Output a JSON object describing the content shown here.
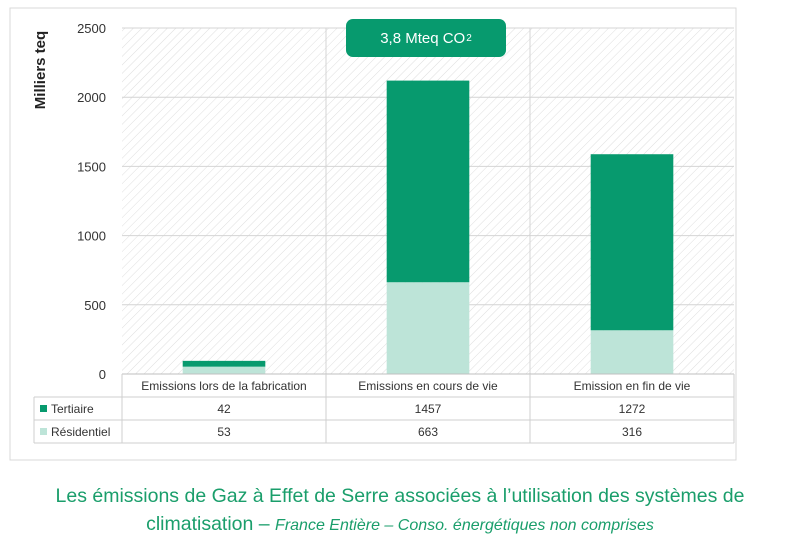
{
  "colors": {
    "tertiaire": "#079a6e",
    "residentiel": "#bde4d8",
    "caption": "#1a9e6b",
    "callout": "#079a6e"
  },
  "callout": {
    "text": "3,8 Mteq CO",
    "subscript": "2"
  },
  "caption": {
    "main": "Les émissions de Gaz à Effet de Serre associées à l’utilisation des systèmes de climatisation",
    "dash": " – ",
    "sub": "France Entière – Conso. énergétiques non comprises"
  },
  "chart_data": {
    "type": "bar",
    "stacked": true,
    "ylabel": "Milliers teq",
    "ylim": [
      0,
      2500
    ],
    "yticks": [
      0,
      500,
      1000,
      1500,
      2000,
      2500
    ],
    "grid": false,
    "categories": [
      "Emissions lors de la fabrication",
      "Emissions en cours de vie",
      "Emission en fin de vie"
    ],
    "series": [
      {
        "name": "Tertiaire",
        "values": [
          42,
          1457,
          1272
        ],
        "color": "#079a6e"
      },
      {
        "name": "Résidentiel",
        "values": [
          53,
          663,
          316
        ],
        "color": "#bde4d8"
      }
    ],
    "table_row_order": [
      "Tertiaire",
      "Résidentiel"
    ],
    "stack_bottom": "Résidentiel"
  }
}
